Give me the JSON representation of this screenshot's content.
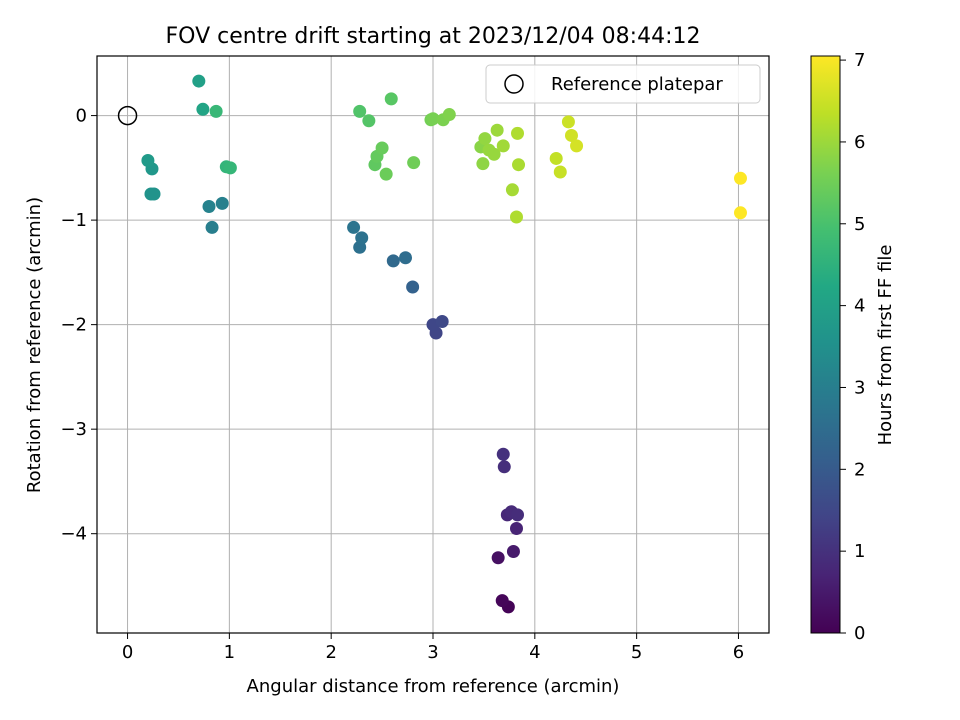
{
  "chart_data": {
    "type": "scatter",
    "title": "FOV centre drift starting at 2023/12/04 08:44:12",
    "xlabel": "Angular distance from reference (arcmin)",
    "ylabel": "Rotation from reference (arcmin)",
    "xlim": [
      -0.3,
      6.3
    ],
    "ylim": [
      -4.95,
      0.57
    ],
    "xticks": [
      0,
      1,
      2,
      3,
      4,
      5,
      6
    ],
    "yticks": [
      0,
      -1,
      -2,
      -3,
      -4
    ],
    "grid": true,
    "legend": {
      "position": "top-right",
      "entries": [
        {
          "label": "Reference platepar",
          "marker": "open-circle"
        }
      ]
    },
    "reference_point": {
      "x": 0,
      "y": 0
    },
    "colorbar": {
      "label": "Hours from first FF file",
      "min": 0,
      "max": 7.05,
      "ticks": [
        0,
        1,
        2,
        3,
        4,
        5,
        6,
        7
      ],
      "colormap": "viridis"
    },
    "points": [
      {
        "x": 3.74,
        "y": -4.7,
        "c": 0.05
      },
      {
        "x": 3.68,
        "y": -4.64,
        "c": 0.1
      },
      {
        "x": 3.64,
        "y": -4.23,
        "c": 0.3
      },
      {
        "x": 3.79,
        "y": -4.17,
        "c": 0.5
      },
      {
        "x": 3.82,
        "y": -3.95,
        "c": 0.7
      },
      {
        "x": 3.73,
        "y": -3.82,
        "c": 0.8
      },
      {
        "x": 3.77,
        "y": -3.79,
        "c": 0.85
      },
      {
        "x": 3.83,
        "y": -3.82,
        "c": 0.9
      },
      {
        "x": 3.7,
        "y": -3.36,
        "c": 0.95
      },
      {
        "x": 3.69,
        "y": -3.24,
        "c": 1.0
      },
      {
        "x": 3.03,
        "y": -2.08,
        "c": 1.45
      },
      {
        "x": 3.0,
        "y": -2.0,
        "c": 1.5
      },
      {
        "x": 3.09,
        "y": -1.97,
        "c": 1.55
      },
      {
        "x": 2.8,
        "y": -1.64,
        "c": 2.2
      },
      {
        "x": 2.61,
        "y": -1.39,
        "c": 2.4
      },
      {
        "x": 2.73,
        "y": -1.36,
        "c": 2.5
      },
      {
        "x": 2.28,
        "y": -1.26,
        "c": 2.6
      },
      {
        "x": 2.3,
        "y": -1.17,
        "c": 2.65
      },
      {
        "x": 2.22,
        "y": -1.07,
        "c": 2.7
      },
      {
        "x": 0.83,
        "y": -1.07,
        "c": 3.0
      },
      {
        "x": 0.93,
        "y": -0.84,
        "c": 3.05
      },
      {
        "x": 0.8,
        "y": -0.87,
        "c": 3.1
      },
      {
        "x": 0.23,
        "y": -0.75,
        "c": 3.6
      },
      {
        "x": 0.26,
        "y": -0.75,
        "c": 3.6
      },
      {
        "x": 0.24,
        "y": -0.51,
        "c": 3.7
      },
      {
        "x": 0.2,
        "y": -0.43,
        "c": 3.8
      },
      {
        "x": 0.7,
        "y": 0.33,
        "c": 4.0
      },
      {
        "x": 0.74,
        "y": 0.06,
        "c": 4.1
      },
      {
        "x": 0.97,
        "y": -0.49,
        "c": 4.6
      },
      {
        "x": 1.01,
        "y": -0.5,
        "c": 4.65
      },
      {
        "x": 0.87,
        "y": 0.04,
        "c": 4.7
      },
      {
        "x": 2.28,
        "y": 0.04,
        "c": 5.1
      },
      {
        "x": 2.37,
        "y": -0.05,
        "c": 5.15
      },
      {
        "x": 2.59,
        "y": 0.16,
        "c": 5.2
      },
      {
        "x": 2.43,
        "y": -0.47,
        "c": 5.3
      },
      {
        "x": 2.45,
        "y": -0.39,
        "c": 5.35
      },
      {
        "x": 2.5,
        "y": -0.31,
        "c": 5.4
      },
      {
        "x": 2.54,
        "y": -0.56,
        "c": 5.45
      },
      {
        "x": 2.81,
        "y": -0.45,
        "c": 5.5
      },
      {
        "x": 2.98,
        "y": -0.04,
        "c": 5.55
      },
      {
        "x": 3.0,
        "y": -0.03,
        "c": 5.6
      },
      {
        "x": 3.1,
        "y": -0.04,
        "c": 5.65
      },
      {
        "x": 3.16,
        "y": 0.01,
        "c": 5.7
      },
      {
        "x": 3.47,
        "y": -0.3,
        "c": 5.8
      },
      {
        "x": 3.49,
        "y": -0.46,
        "c": 5.85
      },
      {
        "x": 3.51,
        "y": -0.22,
        "c": 5.9
      },
      {
        "x": 3.55,
        "y": -0.33,
        "c": 5.95
      },
      {
        "x": 3.6,
        "y": -0.37,
        "c": 5.95
      },
      {
        "x": 3.63,
        "y": -0.14,
        "c": 6.0
      },
      {
        "x": 3.69,
        "y": -0.29,
        "c": 6.05
      },
      {
        "x": 3.78,
        "y": -0.71,
        "c": 6.1
      },
      {
        "x": 3.84,
        "y": -0.47,
        "c": 6.15
      },
      {
        "x": 3.83,
        "y": -0.17,
        "c": 6.2
      },
      {
        "x": 3.82,
        "y": -0.97,
        "c": 6.2
      },
      {
        "x": 4.21,
        "y": -0.41,
        "c": 6.4
      },
      {
        "x": 4.25,
        "y": -0.54,
        "c": 6.45
      },
      {
        "x": 4.33,
        "y": -0.06,
        "c": 6.5
      },
      {
        "x": 4.36,
        "y": -0.19,
        "c": 6.55
      },
      {
        "x": 4.41,
        "y": -0.29,
        "c": 6.6
      },
      {
        "x": 6.02,
        "y": -0.6,
        "c": 7.05
      },
      {
        "x": 6.02,
        "y": -0.93,
        "c": 7.05
      }
    ]
  }
}
